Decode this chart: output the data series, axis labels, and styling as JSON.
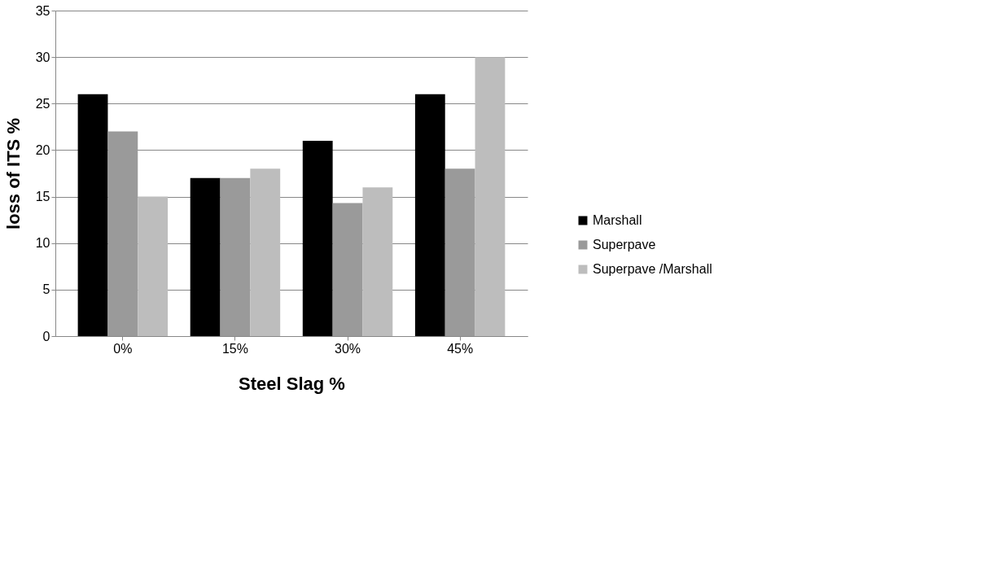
{
  "chart_data": {
    "type": "bar",
    "xlabel": "Steel Slag %",
    "ylabel": "loss of ITS %",
    "categories": [
      "0%",
      "15%",
      "30%",
      "45%"
    ],
    "series": [
      {
        "name": "Marshall",
        "color": "#000000",
        "values": [
          26,
          17,
          21,
          26
        ]
      },
      {
        "name": "Superpave",
        "color": "#9a9a9a",
        "values": [
          22,
          17,
          14.3,
          18
        ]
      },
      {
        "name": "Superpave /Marshall",
        "color": "#bdbdbd",
        "values": [
          15,
          18,
          16,
          30
        ]
      }
    ],
    "ylim": [
      0,
      35
    ],
    "yticks": [
      0,
      5,
      10,
      15,
      20,
      25,
      30,
      35
    ],
    "grid": "y",
    "legend": "bottom right"
  }
}
